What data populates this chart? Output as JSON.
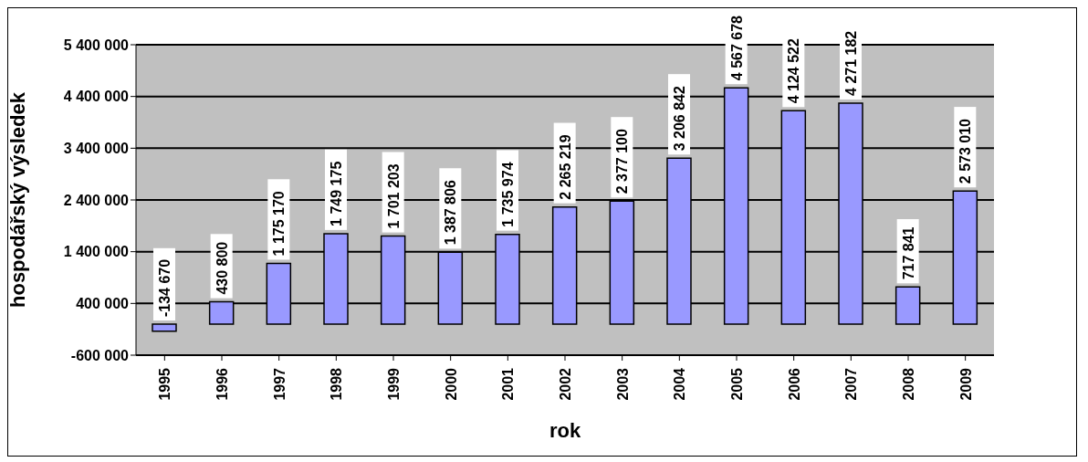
{
  "chart_data": {
    "type": "bar",
    "xlabel": "rok",
    "ylabel": "hospodářský výsledek",
    "categories": [
      "1995",
      "1996",
      "1997",
      "1998",
      "1999",
      "2000",
      "2001",
      "2002",
      "2003",
      "2004",
      "2005",
      "2006",
      "2007",
      "2008",
      "2009"
    ],
    "values": [
      -134670,
      430800,
      1175170,
      1749175,
      1701203,
      1387806,
      1735974,
      2265219,
      2377100,
      3206842,
      4567678,
      4124522,
      4271182,
      717841,
      2573010
    ],
    "value_labels": [
      "-134 670",
      "430 800",
      "1 175 170",
      "1 749 175",
      "1 701 203",
      "1 387 806",
      "1 735 974",
      "2 265 219",
      "2 377 100",
      "3 206 842",
      "4 567 678",
      "4 124 522",
      "4 271 182",
      "717 841",
      "2 573 010"
    ],
    "color": "#9999ff",
    "ylim": [
      -600000,
      5400000
    ],
    "yticks": [
      {
        "value": -600000,
        "label": "-600 000"
      },
      {
        "value": 400000,
        "label": "400 000"
      },
      {
        "value": 1400000,
        "label": "1 400 000"
      },
      {
        "value": 2400000,
        "label": "2 400 000"
      },
      {
        "value": 3400000,
        "label": "3 400 000"
      },
      {
        "value": 4400000,
        "label": "4 400 000"
      },
      {
        "value": 5400000,
        "label": "5 400 000"
      }
    ],
    "grid": "y"
  }
}
